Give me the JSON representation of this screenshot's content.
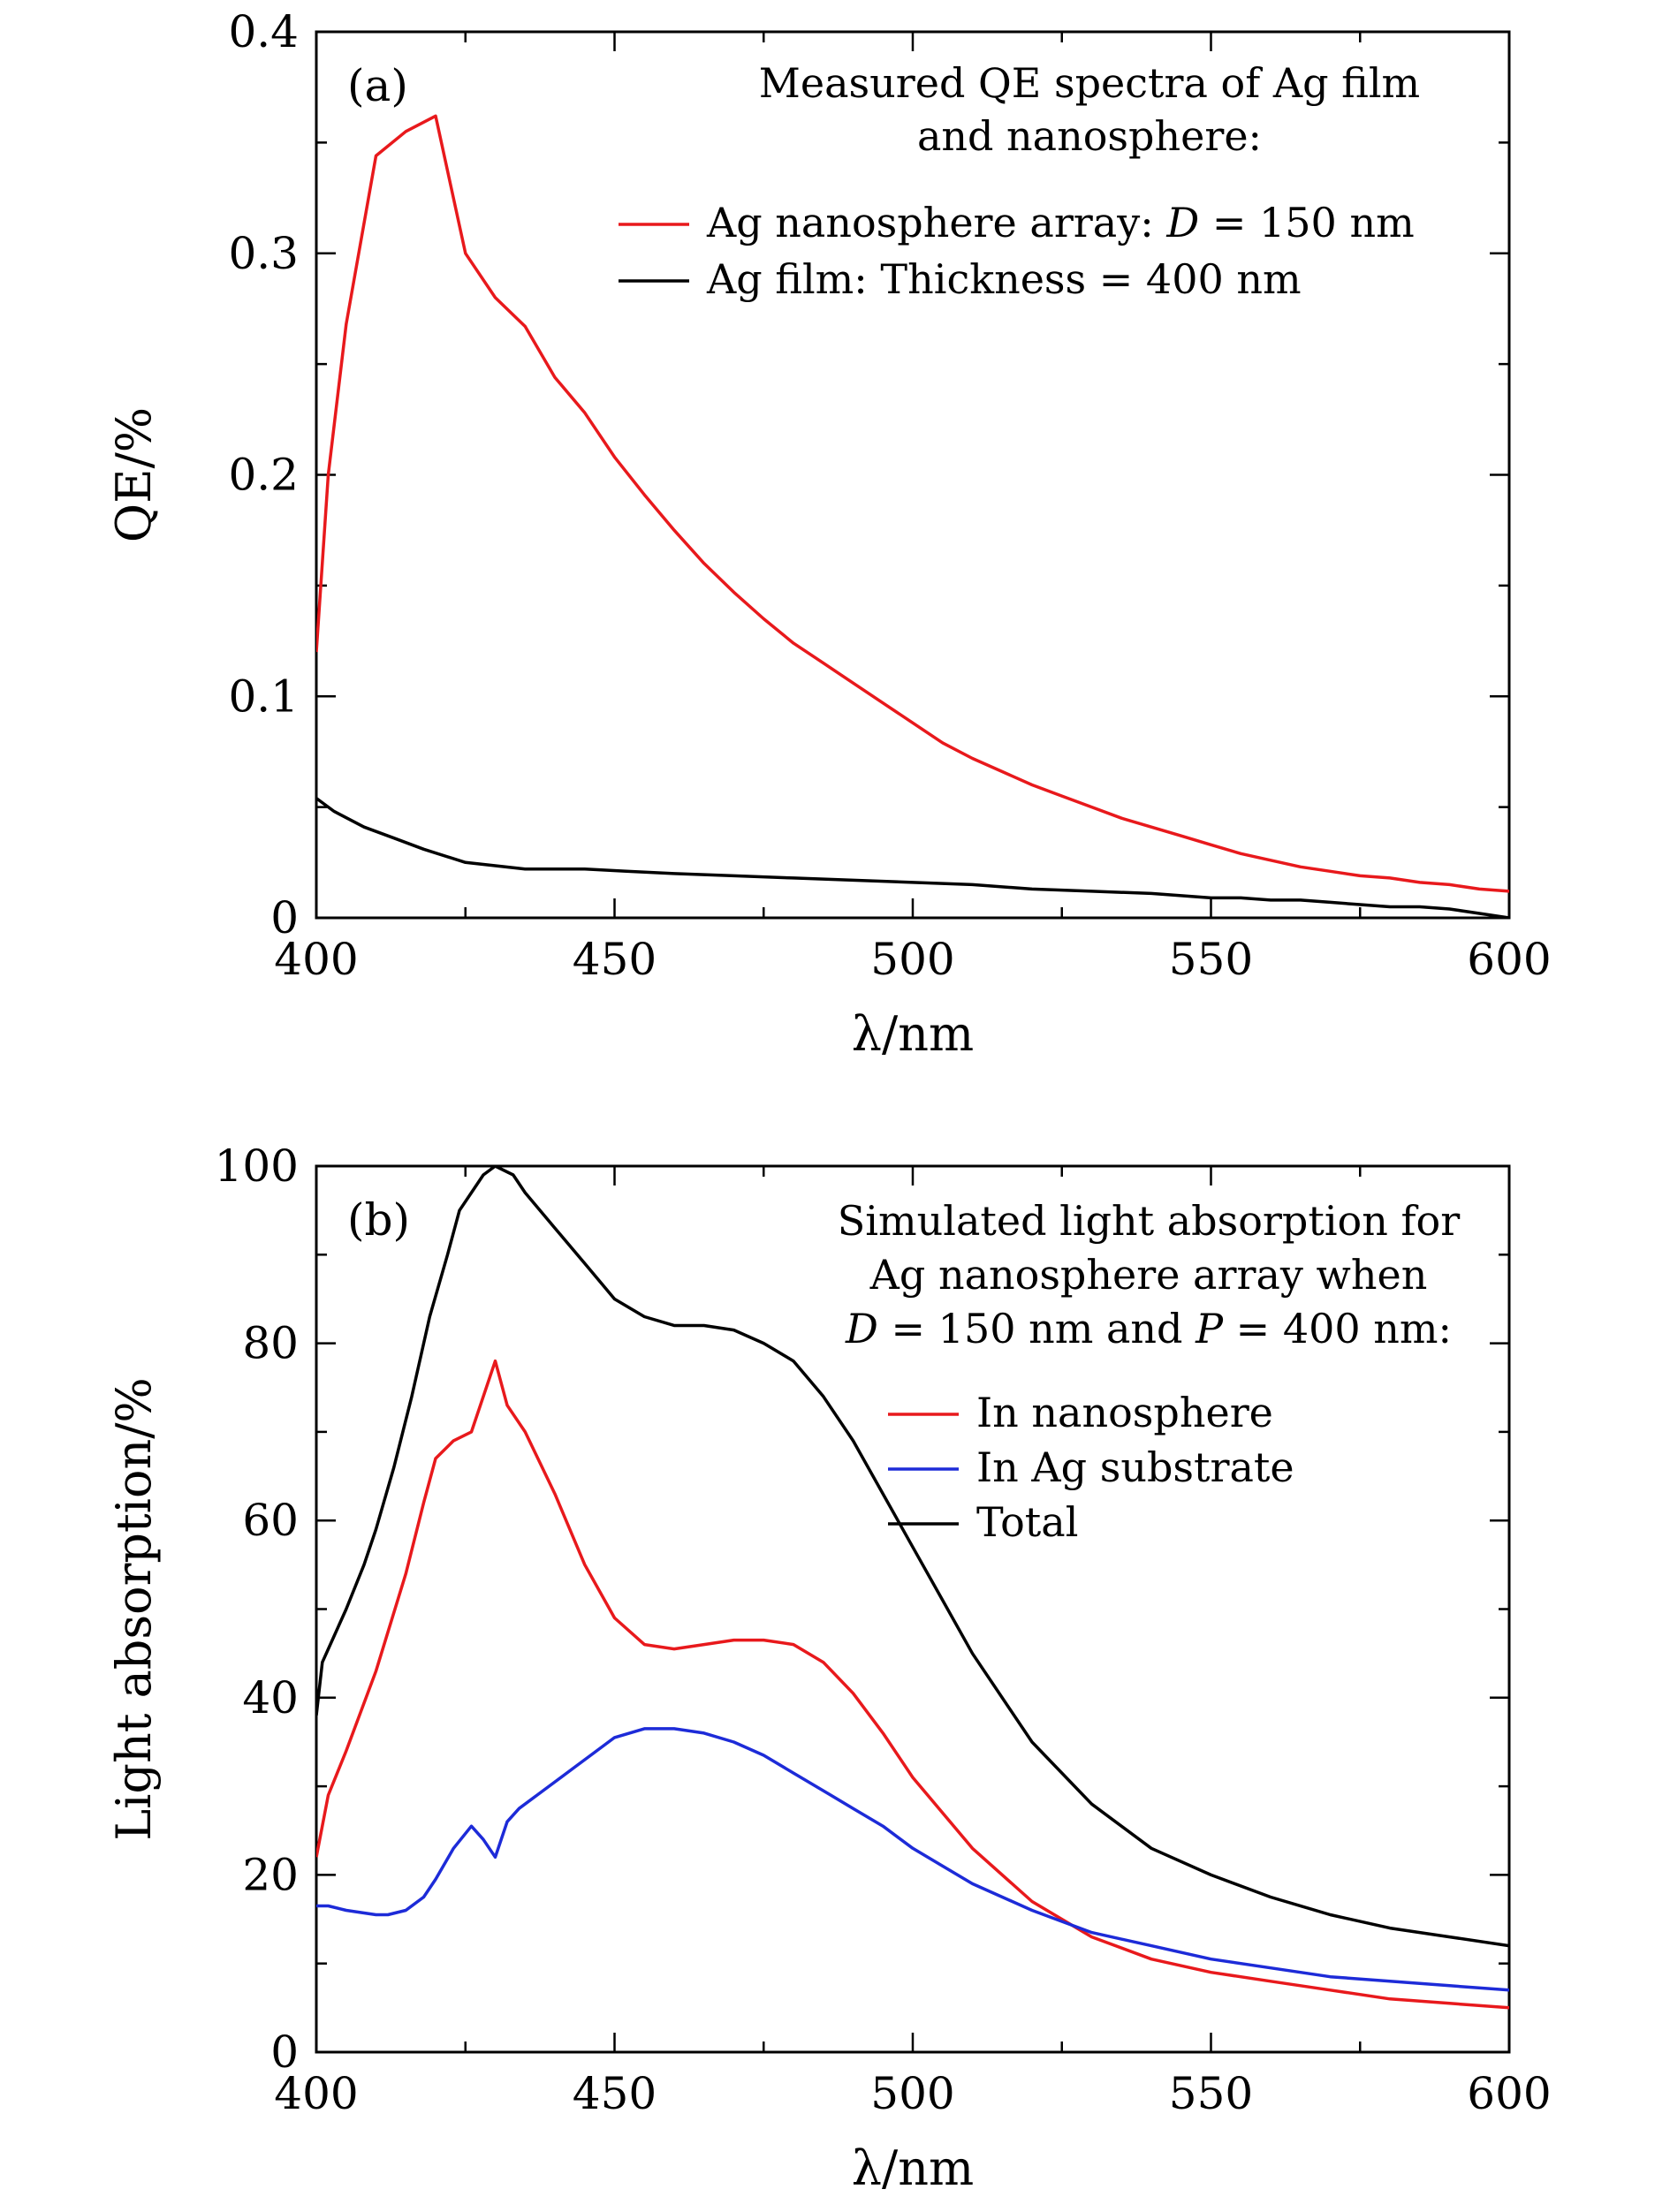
{
  "chart_data": [
    {
      "panel_label": "(a)",
      "type": "line",
      "xlabel": "λ/nm",
      "ylabel": "QE/%",
      "xlim": [
        400,
        600
      ],
      "ylim": [
        0,
        0.4
      ],
      "xticks": [
        "400",
        "450",
        "500",
        "550",
        "600"
      ],
      "yticks": [
        "0",
        "0.1",
        "0.2",
        "0.3",
        "0.4"
      ],
      "grid": false,
      "legend_position": "top-right",
      "legend_title": [
        "Measured QE spectra of Ag film",
        "and nanosphere:"
      ],
      "series": [
        {
          "name": "Ag nanosphere array: D = 150 nm",
          "color": "#e8191c",
          "x": [
            400,
            402,
            405,
            410,
            415,
            420,
            425,
            430,
            435,
            440,
            445,
            450,
            455,
            460,
            465,
            470,
            475,
            480,
            485,
            490,
            495,
            500,
            505,
            510,
            515,
            520,
            525,
            530,
            535,
            540,
            545,
            550,
            555,
            560,
            565,
            570,
            575,
            580,
            585,
            590,
            595,
            600
          ],
          "y": [
            0.12,
            0.2,
            0.268,
            0.344,
            0.355,
            0.362,
            0.3,
            0.28,
            0.267,
            0.244,
            0.228,
            0.208,
            0.191,
            0.175,
            0.16,
            0.147,
            0.135,
            0.124,
            0.115,
            0.106,
            0.097,
            0.088,
            0.079,
            0.072,
            0.066,
            0.06,
            0.055,
            0.05,
            0.045,
            0.041,
            0.037,
            0.033,
            0.029,
            0.026,
            0.023,
            0.021,
            0.019,
            0.018,
            0.016,
            0.015,
            0.013,
            0.012
          ]
        },
        {
          "name": "Ag film: Thickness = 400 nm",
          "color": "#000000",
          "x": [
            400,
            403,
            408,
            413,
            418,
            425,
            435,
            445,
            452,
            460,
            470,
            480,
            490,
            500,
            510,
            520,
            530,
            540,
            545,
            550,
            555,
            560,
            565,
            570,
            575,
            580,
            585,
            590,
            595,
            600
          ],
          "y": [
            0.054,
            0.048,
            0.041,
            0.036,
            0.031,
            0.025,
            0.022,
            0.022,
            0.021,
            0.02,
            0.019,
            0.018,
            0.017,
            0.016,
            0.015,
            0.013,
            0.012,
            0.011,
            0.01,
            0.009,
            0.009,
            0.008,
            0.008,
            0.007,
            0.006,
            0.005,
            0.005,
            0.004,
            0.002,
            0.0
          ]
        }
      ]
    },
    {
      "panel_label": "(b)",
      "type": "line",
      "xlabel": "λ/nm",
      "ylabel": "Light absorption/%",
      "xlim": [
        400,
        600
      ],
      "ylim": [
        0,
        100
      ],
      "xticks": [
        "400",
        "450",
        "500",
        "550",
        "600"
      ],
      "yticks": [
        "0",
        "20",
        "40",
        "60",
        "80",
        "100"
      ],
      "grid": false,
      "legend_position": "top-right",
      "legend_title": [
        "Simulated light absorption for",
        "Ag nanosphere array when",
        "D = 150 nm and P = 400 nm:"
      ],
      "series": [
        {
          "name": "In nanosphere",
          "color": "#e8191c",
          "x": [
            400,
            402,
            405,
            410,
            415,
            418,
            420,
            423,
            426,
            428,
            430,
            432,
            435,
            440,
            445,
            450,
            455,
            460,
            465,
            470,
            475,
            480,
            485,
            490,
            495,
            500,
            505,
            510,
            520,
            530,
            540,
            550,
            560,
            570,
            580,
            590,
            600
          ],
          "y": [
            22,
            29,
            34,
            43,
            54,
            62,
            67,
            69,
            70,
            74,
            78,
            73,
            70,
            63,
            55,
            49,
            46,
            45.5,
            46,
            46.5,
            46.5,
            46,
            44,
            40.5,
            36,
            31,
            27,
            23,
            17,
            13,
            10.5,
            9,
            8,
            7,
            6,
            5.5,
            5
          ]
        },
        {
          "name": "In Ag substrate",
          "color": "#1d2bd8",
          "x": [
            400,
            402,
            405,
            410,
            412,
            415,
            418,
            420,
            423,
            426,
            428,
            430,
            432,
            434,
            437,
            440,
            443,
            446,
            450,
            455,
            460,
            465,
            470,
            475,
            480,
            485,
            490,
            495,
            500,
            505,
            510,
            520,
            530,
            540,
            550,
            560,
            570,
            580,
            590,
            600
          ],
          "y": [
            16.5,
            16.5,
            16,
            15.5,
            15.5,
            16,
            17.5,
            19.5,
            23,
            25.5,
            24,
            22,
            26,
            27.5,
            29,
            30.5,
            32,
            33.5,
            35.5,
            36.5,
            36.5,
            36,
            35,
            33.5,
            31.5,
            29.5,
            27.5,
            25.5,
            23,
            21,
            19,
            16,
            13.5,
            12,
            10.5,
            9.5,
            8.5,
            8,
            7.5,
            7
          ]
        },
        {
          "name": "Total",
          "color": "#000000",
          "x": [
            400,
            401,
            403,
            405,
            408,
            410,
            413,
            416,
            419,
            422,
            424,
            426,
            428,
            430,
            433,
            435,
            440,
            445,
            450,
            455,
            460,
            465,
            470,
            475,
            480,
            485,
            490,
            495,
            500,
            505,
            510,
            520,
            530,
            540,
            550,
            560,
            570,
            580,
            590,
            600
          ],
          "y": [
            38,
            44,
            47,
            50,
            55,
            59,
            66,
            74,
            83,
            90,
            95,
            97,
            99,
            100,
            99,
            97,
            93,
            89,
            85,
            83,
            82,
            82,
            81.5,
            80,
            78,
            74,
            69,
            63,
            57,
            51,
            45,
            35,
            28,
            23,
            20,
            17.5,
            15.5,
            14,
            13,
            12
          ]
        }
      ]
    }
  ]
}
